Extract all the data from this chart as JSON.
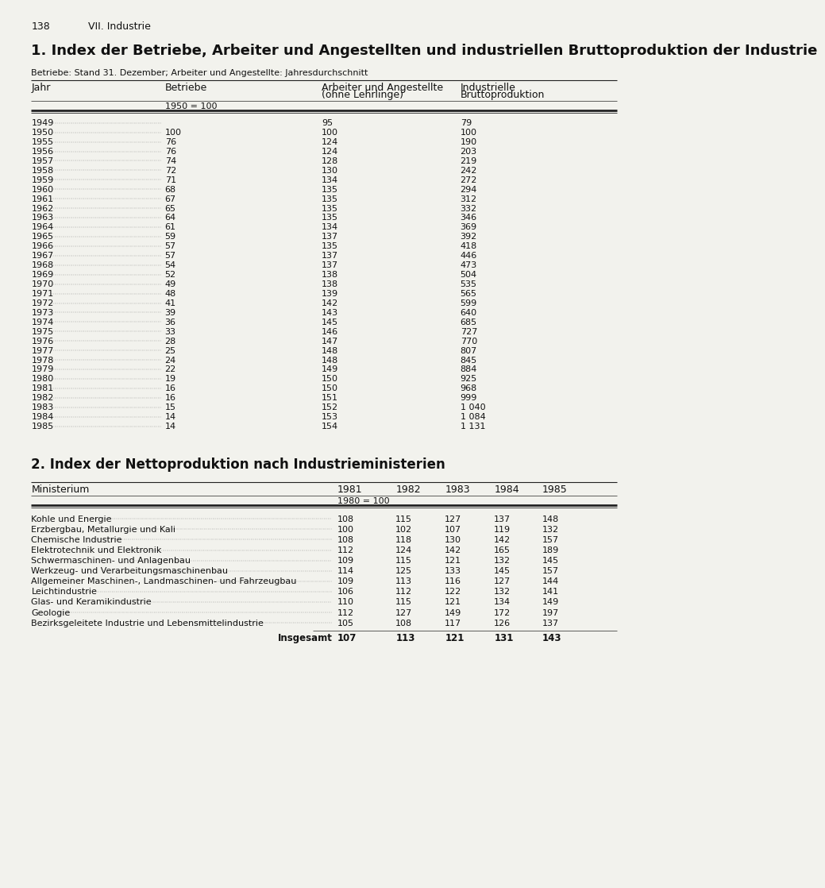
{
  "page_number": "138",
  "page_header": "VII. Industrie",
  "section1_title": "1. Index der Betriebe, Arbeiter und Angestellten und industriellen Bruttoproduktion der Industrie",
  "section1_subtitle": "Betriebe: Stand 31. Dezember; Arbeiter und Angestellte: Jahresdurchschnitt",
  "section1_col_headers": [
    "Jahr",
    "Betriebe",
    "Arbeiter und Angestellte\n(ohne Lehrlinge)",
    "Industrielle\nBruttoproduktion"
  ],
  "section1_subheader": "1950 = 100",
  "section1_data": [
    [
      "1949",
      "",
      "95",
      "79"
    ],
    [
      "1950",
      "100",
      "100",
      "100"
    ],
    [
      "1955",
      "76",
      "124",
      "190"
    ],
    [
      "1956",
      "76",
      "124",
      "203"
    ],
    [
      "1957",
      "74",
      "128",
      "219"
    ],
    [
      "1958",
      "72",
      "130",
      "242"
    ],
    [
      "1959",
      "71",
      "134",
      "272"
    ],
    [
      "1960",
      "68",
      "135",
      "294"
    ],
    [
      "1961",
      "67",
      "135",
      "312"
    ],
    [
      "1962",
      "65",
      "135",
      "332"
    ],
    [
      "1963",
      "64",
      "135",
      "346"
    ],
    [
      "1964",
      "61",
      "134",
      "369"
    ],
    [
      "1965",
      "59",
      "137",
      "392"
    ],
    [
      "1966",
      "57",
      "135",
      "418"
    ],
    [
      "1967",
      "57",
      "137",
      "446"
    ],
    [
      "1968",
      "54",
      "137",
      "473"
    ],
    [
      "1969",
      "52",
      "138",
      "504"
    ],
    [
      "1970",
      "49",
      "138",
      "535"
    ],
    [
      "1971",
      "48",
      "139",
      "565"
    ],
    [
      "1972",
      "41",
      "142",
      "599"
    ],
    [
      "1973",
      "39",
      "143",
      "640"
    ],
    [
      "1974",
      "36",
      "145",
      "685"
    ],
    [
      "1975",
      "33",
      "146",
      "727"
    ],
    [
      "1976",
      "28",
      "147",
      "770"
    ],
    [
      "1977",
      "25",
      "148",
      "807"
    ],
    [
      "1978",
      "24",
      "148",
      "845"
    ],
    [
      "1979",
      "22",
      "149",
      "884"
    ],
    [
      "1980",
      "19",
      "150",
      "925"
    ],
    [
      "1981",
      "16",
      "150",
      "968"
    ],
    [
      "1982",
      "16",
      "151",
      "999"
    ],
    [
      "1983",
      "15",
      "152",
      "1 040"
    ],
    [
      "1984",
      "14",
      "153",
      "1 084"
    ],
    [
      "1985",
      "14",
      "154",
      "1 131"
    ]
  ],
  "section2_title": "2. Index der Nettoproduktion nach Industrieministerien",
  "section2_col_headers": [
    "Ministerium",
    "1981",
    "1982",
    "1983",
    "1984",
    "1985"
  ],
  "section2_subheader": "1980 = 100",
  "section2_data": [
    [
      "Kohle und Energie",
      "108",
      "115",
      "127",
      "137",
      "148"
    ],
    [
      "Erzbergbau, Metallurgie und Kali",
      "100",
      "102",
      "107",
      "119",
      "132"
    ],
    [
      "Chemische Industrie",
      "108",
      "118",
      "130",
      "142",
      "157"
    ],
    [
      "Elektrotechnik und Elektronik",
      "112",
      "124",
      "142",
      "165",
      "189"
    ],
    [
      "Schwermaschinen- und Anlagenbau",
      "109",
      "115",
      "121",
      "132",
      "145"
    ],
    [
      "Werkzeug- und Verarbeitungsmaschinenbau",
      "114",
      "125",
      "133",
      "145",
      "157"
    ],
    [
      "Allgemeiner Maschinen-, Landmaschinen- und Fahrzeugbau",
      "109",
      "113",
      "116",
      "127",
      "144"
    ],
    [
      "Leichtindustrie",
      "106",
      "112",
      "122",
      "132",
      "141"
    ],
    [
      "Glas- und Keramikindustrie",
      "110",
      "115",
      "121",
      "134",
      "149"
    ],
    [
      "Geologie",
      "112",
      "127",
      "149",
      "172",
      "197"
    ],
    [
      "Bezirksgeleitete Industrie und Lebensmittelindustrie",
      "105",
      "108",
      "117",
      "126",
      "137"
    ]
  ],
  "section2_total": [
    "Insgesamt",
    "107",
    "113",
    "121",
    "131",
    "143"
  ],
  "bg_color": "#f2f2ed",
  "text_color": "#111111",
  "line_color": "#222222"
}
